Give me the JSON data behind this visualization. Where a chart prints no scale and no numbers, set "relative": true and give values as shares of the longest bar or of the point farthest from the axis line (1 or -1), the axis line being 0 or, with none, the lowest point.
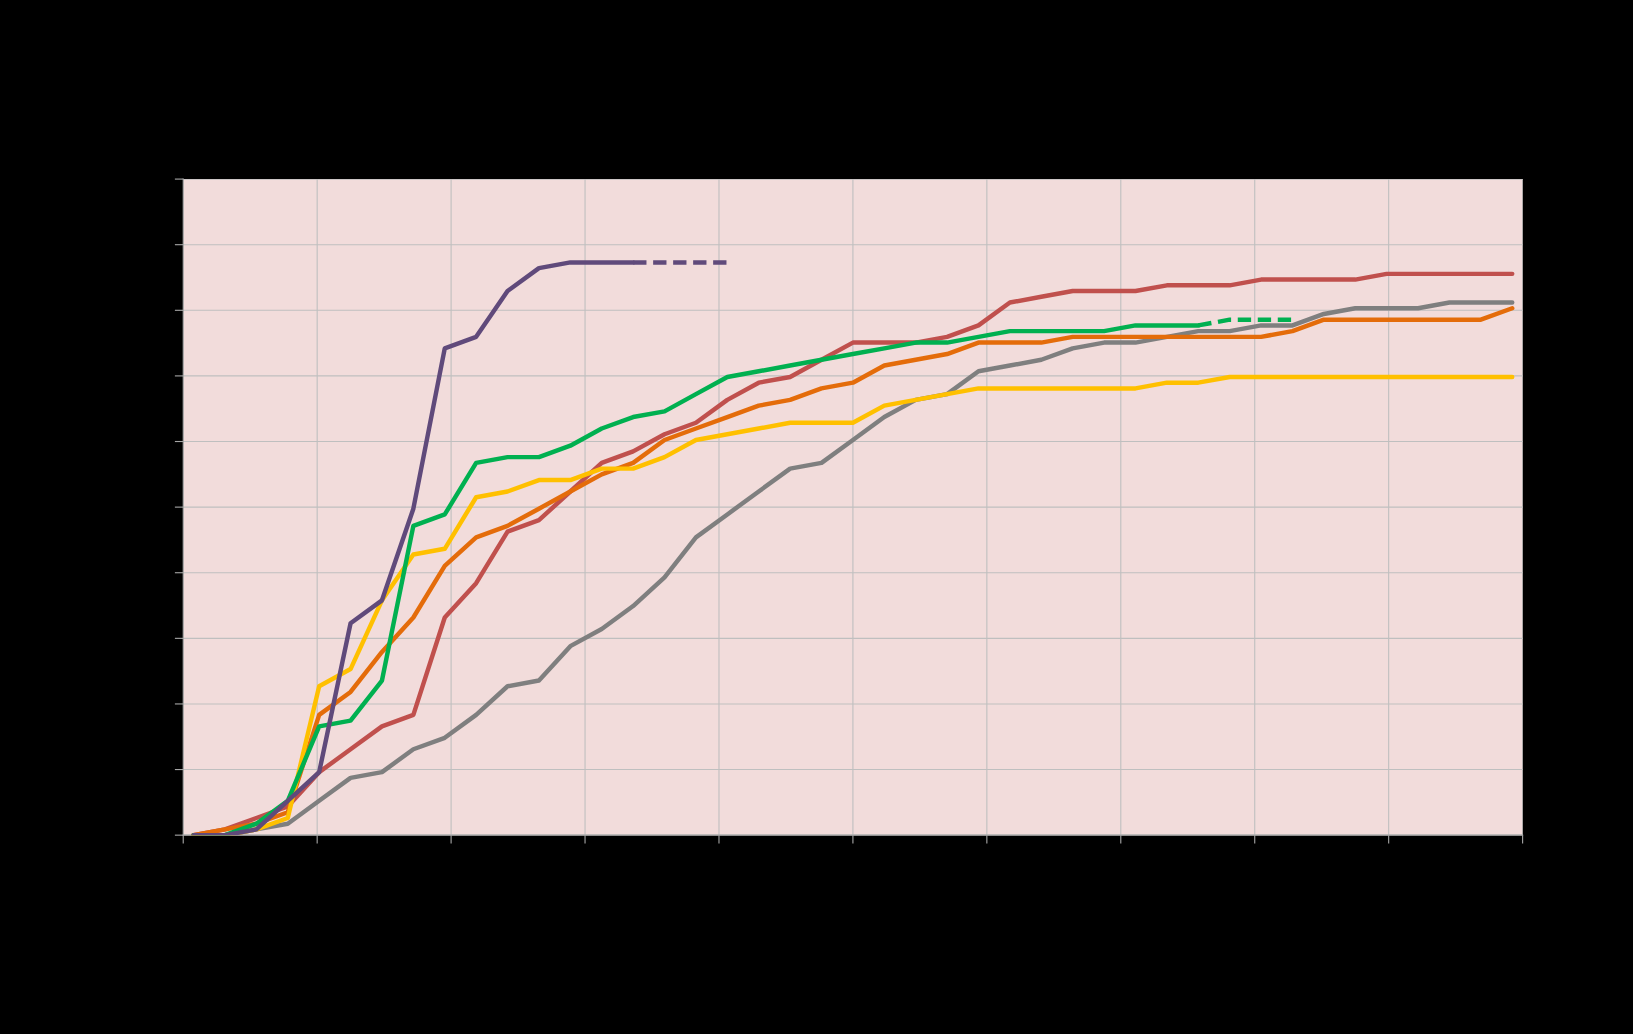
{
  "chart_data": {
    "type": "line",
    "relative": true,
    "grid": true,
    "line_style": "solid",
    "marker": "none",
    "categories": [
      null,
      null,
      null,
      null,
      null,
      null,
      null,
      null,
      null,
      null,
      null,
      null,
      null,
      null,
      null,
      null,
      null,
      null,
      null,
      null,
      null,
      null,
      null,
      null,
      null,
      null,
      null,
      null,
      null,
      null,
      null,
      null,
      null,
      null,
      null,
      null,
      null,
      null,
      null,
      null,
      null,
      null,
      null
    ],
    "series": [
      {
        "color": "#7f7f7f",
        "values": [
          0,
          0,
          0.01,
          0.02,
          0.06,
          0.1,
          0.11,
          0.15,
          0.17,
          0.21,
          0.26,
          0.27,
          0.33,
          0.36,
          0.4,
          0.45,
          0.52,
          0.56,
          0.6,
          0.64,
          0.65,
          0.69,
          0.73,
          0.76,
          0.77,
          0.81,
          0.82,
          0.83,
          0.85,
          0.86,
          0.86,
          0.87,
          0.88,
          0.88,
          0.89,
          0.89,
          0.91,
          0.92,
          0.92,
          0.92,
          0.93,
          0.93,
          0.93
        ]
      },
      {
        "color": "#c0504d",
        "values": [
          0,
          0.01,
          0.03,
          0.05,
          0.11,
          0.15,
          0.19,
          0.21,
          0.38,
          0.44,
          0.53,
          0.55,
          0.6,
          0.65,
          0.67,
          0.7,
          0.72,
          0.76,
          0.79,
          0.8,
          0.83,
          0.86,
          0.86,
          0.86,
          0.87,
          0.89,
          0.93,
          0.94,
          0.95,
          0.95,
          0.95,
          0.96,
          0.96,
          0.96,
          0.97,
          0.97,
          0.97,
          0.97,
          0.98,
          0.98,
          0.98,
          0.98,
          0.98
        ]
      },
      {
        "color": "#e46c0a",
        "values": [
          0,
          0.01,
          0.02,
          0.04,
          0.21,
          0.25,
          0.32,
          0.38,
          0.47,
          0.52,
          0.54,
          0.57,
          0.6,
          0.63,
          0.65,
          0.69,
          0.71,
          0.73,
          0.75,
          0.76,
          0.78,
          0.79,
          0.82,
          0.83,
          0.84,
          0.86,
          0.86,
          0.86,
          0.87,
          0.87,
          0.87,
          0.87,
          0.87,
          0.87,
          0.87,
          0.88,
          0.9,
          0.9,
          0.9,
          0.9,
          0.9,
          0.9,
          0.92
        ]
      },
      {
        "color": "#ffc000",
        "values": [
          0,
          0,
          0.01,
          0.03,
          0.26,
          0.29,
          0.41,
          0.49,
          0.5,
          0.59,
          0.6,
          0.62,
          0.62,
          0.64,
          0.64,
          0.66,
          0.69,
          0.7,
          0.71,
          0.72,
          0.72,
          0.72,
          0.75,
          0.76,
          0.77,
          0.78,
          0.78,
          0.78,
          0.78,
          0.78,
          0.78,
          0.79,
          0.79,
          0.8,
          0.8,
          0.8,
          0.8,
          0.8,
          0.8,
          0.8,
          0.8,
          0.8,
          0.8
        ]
      },
      {
        "color": "#00b050",
        "values": [
          0,
          0,
          0.02,
          0.06,
          0.19,
          0.2,
          0.27,
          0.54,
          0.56,
          0.65,
          0.66,
          0.66,
          0.68,
          0.71,
          0.73,
          0.74,
          0.77,
          0.8,
          0.81,
          0.82,
          0.83,
          0.84,
          0.85,
          0.86,
          0.86,
          0.87,
          0.88,
          0.88,
          0.88,
          0.88,
          0.89,
          0.89,
          0.89,
          null,
          null,
          null,
          null,
          null,
          null,
          null,
          null,
          null,
          null
        ]
      },
      {
        "color": "#00b050",
        "line_style": "dashed",
        "values": [
          null,
          null,
          null,
          null,
          null,
          null,
          null,
          null,
          null,
          null,
          null,
          null,
          null,
          null,
          null,
          null,
          null,
          null,
          null,
          null,
          null,
          null,
          null,
          null,
          null,
          null,
          null,
          null,
          null,
          null,
          null,
          null,
          0.89,
          0.9,
          0.9,
          0.9,
          null,
          null,
          null,
          null,
          null,
          null,
          null
        ]
      },
      {
        "color": "#604a7b",
        "values": [
          0,
          0,
          0.01,
          0.06,
          0.11,
          0.37,
          0.41,
          0.57,
          0.85,
          0.87,
          0.95,
          0.99,
          1.0,
          1.0,
          1.0,
          null,
          null,
          null,
          null,
          null,
          null,
          null,
          null,
          null,
          null,
          null,
          null,
          null,
          null,
          null,
          null,
          null,
          null,
          null,
          null,
          null,
          null,
          null,
          null,
          null,
          null,
          null,
          null
        ]
      },
      {
        "color": "#604a7b",
        "line_style": "dashed",
        "values": [
          null,
          null,
          null,
          null,
          null,
          null,
          null,
          null,
          null,
          null,
          null,
          null,
          null,
          null,
          1.0,
          1.0,
          1.0,
          1.0,
          null,
          null,
          null,
          null,
          null,
          null,
          null,
          null,
          null,
          null,
          null,
          null,
          null,
          null,
          null,
          null,
          null,
          null,
          null,
          null,
          null,
          null,
          null,
          null,
          null
        ]
      }
    ]
  }
}
